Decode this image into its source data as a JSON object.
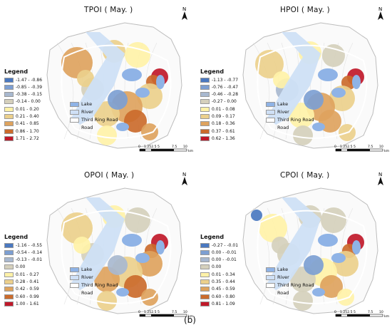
{
  "figure_label": "(b)",
  "colors": {
    "lake": "#8fb3e6",
    "river": "#cfe0f6",
    "ring_road": "#ffffff",
    "boundary": "#bdbdbd"
  },
  "legend_common": {
    "title": "Legend",
    "lake": "Lake",
    "river": "River",
    "ring": "Third Ring Road",
    "road": "Road"
  },
  "scalebar": {
    "ticks": [
      "0",
      "1.252.5",
      "5",
      "7.5",
      "10"
    ],
    "unit": "km"
  },
  "north_label": "N",
  "panels": [
    {
      "id": "tpoi",
      "title": "TPOI ( May. )",
      "classes": [
        {
          "label": "-1.47 - -0.86",
          "color": "#4a78c0"
        },
        {
          "label": "-0.85 - -0.39",
          "color": "#7d9fd2"
        },
        {
          "label": "-0.38 - -0.15",
          "color": "#a8b8cf"
        },
        {
          "label": "-0.14 - 0.00",
          "color": "#d5d0bc"
        },
        {
          "label": "0.01 - 0.20",
          "color": "#fff2a8"
        },
        {
          "label": "0.21 - 0.40",
          "color": "#ecd08c"
        },
        {
          "label": "0.41 - 0.85",
          "color": "#dea35e"
        },
        {
          "label": "0.86 - 1.70",
          "color": "#cb6b2c"
        },
        {
          "label": "1.71 - 2.72",
          "color": "#c0192a"
        }
      ]
    },
    {
      "id": "hpoi",
      "title": "HPOI ( May. )",
      "classes": [
        {
          "label": "-1.13 - -0.77",
          "color": "#4a78c0"
        },
        {
          "label": "-0.76 - -0.47",
          "color": "#7d9fd2"
        },
        {
          "label": "-0.46 - -0.28",
          "color": "#a8b8cf"
        },
        {
          "label": "-0.27 - 0.00",
          "color": "#d5d0bc"
        },
        {
          "label": "0.01 - 0.08",
          "color": "#fff2a8"
        },
        {
          "label": "0.09 - 0.17",
          "color": "#ecd08c"
        },
        {
          "label": "0.18 - 0.36",
          "color": "#dea35e"
        },
        {
          "label": "0.37 - 0.61",
          "color": "#cb6b2c"
        },
        {
          "label": "0.62 - 1.36",
          "color": "#c0192a"
        }
      ]
    },
    {
      "id": "opoi",
      "title": "OPOI ( May. )",
      "classes": [
        {
          "label": "-1.16 - -0.55",
          "color": "#4a78c0"
        },
        {
          "label": "-0.54 - -0.14",
          "color": "#7d9fd2"
        },
        {
          "label": "-0.13 - -0.01",
          "color": "#a8b8cf"
        },
        {
          "label": "0.00",
          "color": "#d5d0bc"
        },
        {
          "label": "0.01 - 0.27",
          "color": "#fff2a8"
        },
        {
          "label": "0.28 - 0.41",
          "color": "#ecd08c"
        },
        {
          "label": "0.42 - 0.59",
          "color": "#dea35e"
        },
        {
          "label": "0.60 - 0.99",
          "color": "#cb6b2c"
        },
        {
          "label": "1.00 - 1.61",
          "color": "#c0192a"
        }
      ]
    },
    {
      "id": "cpoi",
      "title": "CPOI ( May. )",
      "classes": [
        {
          "label": "-0.27 - -0.01",
          "color": "#4a78c0"
        },
        {
          "label": "0.00 - -0.01",
          "color": "#7d9fd2"
        },
        {
          "label": "0.00 - -0.01",
          "color": "#a8b8cf"
        },
        {
          "label": "0.00",
          "color": "#d5d0bc"
        },
        {
          "label": "0.01 - 0.34",
          "color": "#fff2a8"
        },
        {
          "label": "0.35 - 0.44",
          "color": "#ecd08c"
        },
        {
          "label": "0.45 - 0.59",
          "color": "#dea35e"
        },
        {
          "label": "0.60 - 0.80",
          "color": "#cb6b2c"
        },
        {
          "label": "0.81 - 1.09",
          "color": "#c0192a"
        }
      ]
    }
  ]
}
